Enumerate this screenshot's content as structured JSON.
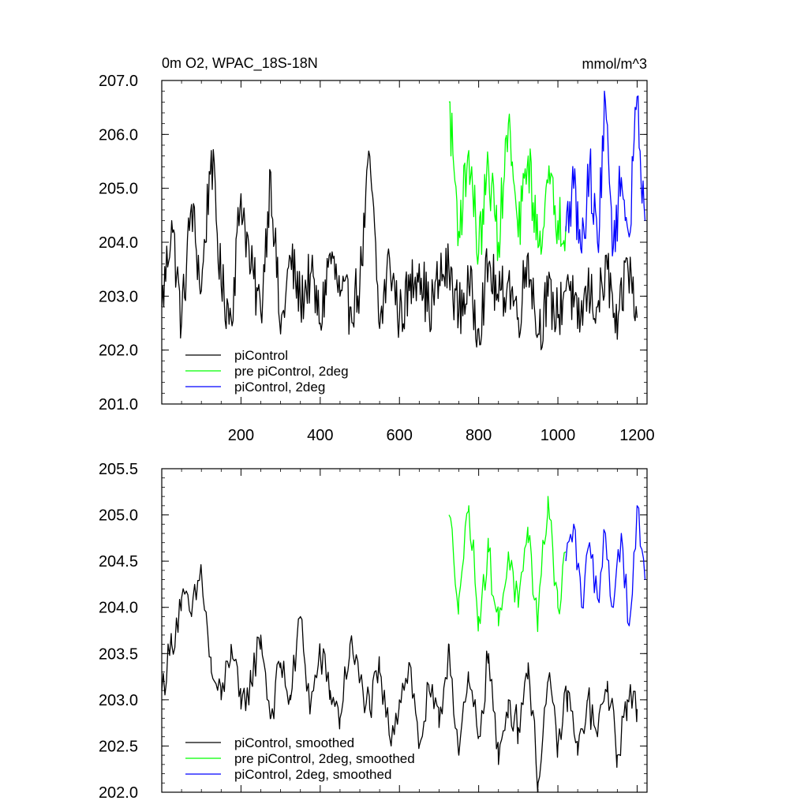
{
  "chart_data": [
    {
      "type": "line",
      "title": "0m O2, WPAC_18S-18N",
      "units": "mmol/m^3",
      "xlim": [
        0,
        1225
      ],
      "ylim": [
        201.0,
        207.0
      ],
      "xticks": [
        200,
        400,
        600,
        800,
        1000,
        1200
      ],
      "xtick_labels": [
        "200",
        "400",
        "600",
        "800",
        "1000",
        "1200"
      ],
      "yticks": [
        201,
        202,
        203,
        204,
        205,
        206,
        207
      ],
      "ytick_labels": [
        "201.0",
        "202.0",
        "203.0",
        "204.0",
        "205.0",
        "206.0",
        "207.0"
      ],
      "legend_position": "bottom-left",
      "series": [
        {
          "name": "piControl",
          "color": "#000000",
          "x": [
            0,
            25,
            50,
            75,
            100,
            125,
            150,
            175,
            200,
            225,
            250,
            275,
            300,
            325,
            350,
            375,
            400,
            425,
            450,
            475,
            500,
            525,
            550,
            575,
            600,
            625,
            650,
            675,
            700,
            725,
            750,
            775,
            800,
            825,
            850,
            875,
            900,
            925,
            950,
            975,
            1000,
            1025,
            1050,
            1075,
            1100,
            1125,
            1150,
            1175,
            1200
          ],
          "values": [
            202.8,
            204.4,
            202.5,
            204.7,
            203.1,
            205.7,
            203.2,
            202.6,
            204.9,
            203.5,
            202.7,
            205.3,
            202.3,
            203.7,
            202.9,
            203.4,
            202.5,
            203.8,
            203.0,
            202.8,
            203.2,
            205.6,
            202.4,
            203.7,
            202.6,
            203.1,
            203.6,
            202.7,
            203.3,
            203.5,
            202.7,
            203.2,
            202.4,
            203.6,
            202.9,
            203.3,
            202.6,
            203.8,
            202.3,
            203.0,
            202.6,
            203.4,
            202.4,
            203.1,
            202.8,
            203.5,
            202.2,
            203.7,
            202.6
          ]
        },
        {
          "name": "pre piControl, 2deg",
          "color": "#00ff00",
          "x": [
            725,
            750,
            775,
            800,
            825,
            850,
            875,
            900,
            925,
            950,
            975,
            1000,
            1020
          ],
          "values": [
            206.6,
            204.2,
            205.7,
            203.8,
            205.4,
            204.0,
            206.2,
            204.1,
            205.6,
            203.9,
            205.1,
            204.4,
            204.3
          ]
        },
        {
          "name": "piControl, 2deg",
          "color": "#0000ff",
          "x": [
            1020,
            1040,
            1060,
            1080,
            1100,
            1120,
            1140,
            1160,
            1180,
            1200,
            1220
          ],
          "values": [
            204.2,
            205.0,
            203.8,
            205.4,
            204.0,
            206.6,
            203.9,
            205.2,
            204.1,
            206.7,
            204.4
          ]
        }
      ]
    },
    {
      "type": "line",
      "xlim": [
        0,
        1225
      ],
      "ylim": [
        202.0,
        205.5
      ],
      "yticks": [
        202.0,
        202.5,
        203.0,
        203.5,
        204.0,
        204.5,
        205.0,
        205.5
      ],
      "ytick_labels": [
        "202.0",
        "202.5",
        "203.0",
        "203.5",
        "204.0",
        "204.5",
        "205.0",
        "205.5"
      ],
      "legend_position": "bottom-left",
      "series": [
        {
          "name": "piControl, smoothed",
          "color": "#000000",
          "x": [
            0,
            25,
            50,
            75,
            100,
            125,
            150,
            175,
            200,
            225,
            250,
            275,
            300,
            325,
            350,
            375,
            400,
            425,
            450,
            475,
            500,
            525,
            550,
            575,
            600,
            625,
            650,
            675,
            700,
            725,
            750,
            775,
            800,
            825,
            850,
            875,
            900,
            925,
            950,
            975,
            1000,
            1025,
            1050,
            1075,
            1100,
            1125,
            1150,
            1175,
            1200
          ],
          "values": [
            203.1,
            203.6,
            204.1,
            203.9,
            204.4,
            203.3,
            203.0,
            203.6,
            202.9,
            203.2,
            203.7,
            202.8,
            203.4,
            203.0,
            203.9,
            202.9,
            203.5,
            203.1,
            202.8,
            203.6,
            203.2,
            202.9,
            203.3,
            202.6,
            203.0,
            203.4,
            202.5,
            203.1,
            202.7,
            203.6,
            202.4,
            203.2,
            202.6,
            203.5,
            202.3,
            203.0,
            202.7,
            203.4,
            202.1,
            203.2,
            202.5,
            203.1,
            202.4,
            203.0,
            202.6,
            203.2,
            202.4,
            203.0,
            202.9
          ]
        },
        {
          "name": "pre piControl, 2deg, smoothed",
          "color": "#00ff00",
          "x": [
            725,
            750,
            775,
            800,
            825,
            850,
            875,
            900,
            925,
            950,
            975,
            1000,
            1020
          ],
          "values": [
            205.0,
            204.1,
            205.1,
            203.9,
            204.6,
            203.8,
            204.6,
            204.0,
            204.7,
            203.9,
            205.2,
            204.0,
            204.6
          ]
        },
        {
          "name": "piControl, 2deg, smoothed",
          "color": "#0000ff",
          "x": [
            1020,
            1040,
            1060,
            1080,
            1100,
            1120,
            1140,
            1160,
            1180,
            1200,
            1220
          ],
          "values": [
            204.5,
            204.9,
            204.0,
            204.7,
            204.1,
            204.8,
            204.0,
            204.8,
            203.8,
            205.1,
            204.3
          ]
        }
      ]
    }
  ]
}
